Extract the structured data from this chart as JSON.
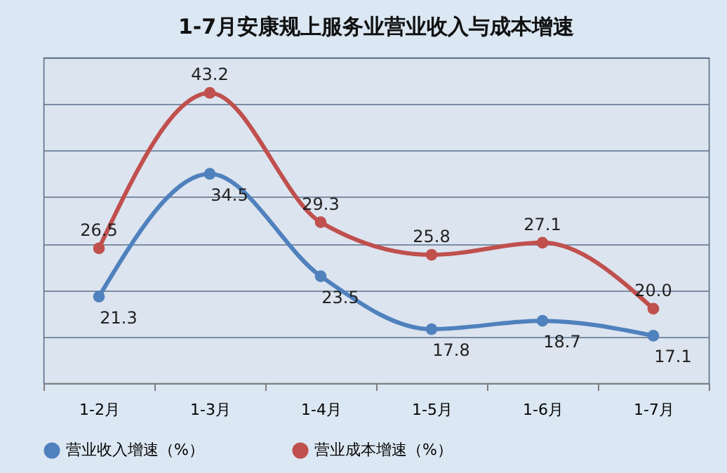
{
  "chart_data": {
    "type": "line",
    "title": "1-7月安康规上服务业营业收入与成本增速",
    "categories": [
      "1-2月",
      "1-3月",
      "1-4月",
      "1-5月",
      "1-6月",
      "1-7月"
    ],
    "series": [
      {
        "name": "营业收入增速（%）",
        "color": "#4f81bd",
        "values": [
          21.3,
          34.5,
          23.5,
          17.8,
          18.7,
          17.1
        ],
        "value_labels": [
          "21.3",
          "34.5",
          "23.5",
          "17.8",
          "18.7",
          "17.1"
        ]
      },
      {
        "name": "营业成本增速（%）",
        "color": "#c0504d",
        "values": [
          26.5,
          43.2,
          29.3,
          25.8,
          27.1,
          20.0
        ],
        "value_labels": [
          "26.5",
          "43.2",
          "29.3",
          "25.8",
          "27.1",
          "20.0"
        ]
      }
    ],
    "ylim": [
      12,
      47
    ],
    "yticks": [
      {
        "value": 12,
        "label": null
      },
      {
        "value": 17,
        "label": null
      },
      {
        "value": 22,
        "label": null
      },
      {
        "value": 27,
        "label": null
      },
      {
        "value": 32,
        "label": null
      },
      {
        "value": 37,
        "label": null
      },
      {
        "value": 42,
        "label": null
      },
      {
        "value": 47,
        "label": null
      }
    ],
    "grid": "y",
    "tick_labels": "x",
    "legend": "bottom",
    "marker": "circle",
    "line_style": "solid"
  }
}
